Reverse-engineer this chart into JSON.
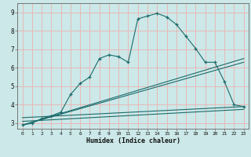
{
  "xlabel": "Humidex (Indice chaleur)",
  "bg_color": "#cce8e8",
  "grid_color": "#e8b8b8",
  "line_color": "#1a6b6b",
  "xlim": [
    -0.5,
    23.5
  ],
  "ylim": [
    2.7,
    9.5
  ],
  "xticks": [
    0,
    1,
    2,
    3,
    4,
    5,
    6,
    7,
    8,
    9,
    10,
    11,
    12,
    13,
    14,
    15,
    16,
    17,
    18,
    19,
    20,
    21,
    22,
    23
  ],
  "yticks": [
    3,
    4,
    5,
    6,
    7,
    8,
    9
  ],
  "series1_x": [
    0,
    1,
    2,
    3,
    4,
    5,
    6,
    7,
    8,
    9,
    10,
    11,
    12,
    13,
    14,
    15,
    16,
    17,
    18,
    19,
    20,
    21,
    22,
    23
  ],
  "series1_y": [
    2.9,
    3.0,
    3.25,
    3.4,
    3.6,
    4.55,
    5.15,
    5.5,
    6.5,
    6.7,
    6.6,
    6.3,
    8.65,
    8.8,
    8.95,
    8.75,
    8.35,
    7.7,
    7.05,
    6.3,
    6.3,
    5.25,
    4.0,
    3.9
  ],
  "series2_x": [
    0,
    23
  ],
  "series2_y": [
    2.9,
    6.5
  ],
  "series3_x": [
    0,
    23
  ],
  "series3_y": [
    2.9,
    6.3
  ],
  "series4_x": [
    0,
    23
  ],
  "series4_y": [
    3.3,
    3.9
  ],
  "series5_x": [
    0,
    23
  ],
  "series5_y": [
    3.1,
    3.75
  ]
}
